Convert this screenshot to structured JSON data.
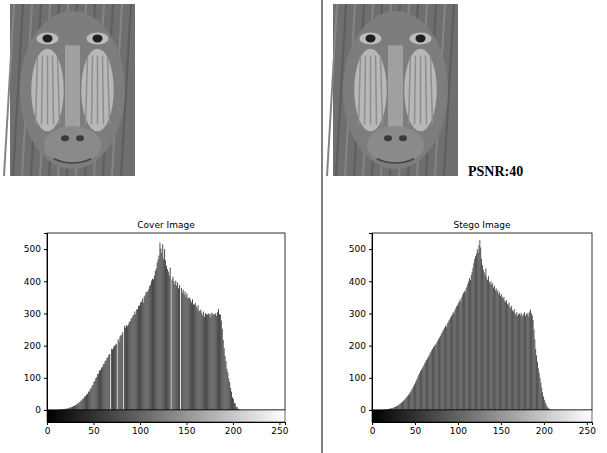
{
  "chart_data": [
    {
      "type": "histogram",
      "title": "Cover Image",
      "color": "#3f3f3f",
      "grid": false,
      "xlim": [
        0,
        256
      ],
      "xticks": [
        0,
        50,
        100,
        150,
        200,
        250
      ],
      "ylim": [
        0,
        550
      ],
      "yticks": [
        0,
        100,
        200,
        300,
        400,
        500
      ],
      "bins": [
        10,
        11,
        12,
        13,
        14,
        15,
        16,
        17,
        18,
        19,
        20,
        21,
        22,
        23,
        24,
        25,
        26,
        27,
        28,
        29,
        30,
        31,
        32,
        33,
        34,
        35,
        36,
        37,
        38,
        39,
        40,
        41,
        42,
        43,
        44,
        45,
        46,
        47,
        48,
        49,
        50,
        51,
        52,
        53,
        54,
        55,
        56,
        57,
        58,
        59,
        60,
        61,
        62,
        63,
        64,
        65,
        66,
        67,
        68,
        69,
        70,
        71,
        72,
        73,
        74,
        75,
        76,
        77,
        78,
        79,
        80,
        81,
        82,
        83,
        84,
        85,
        86,
        87,
        88,
        89,
        90,
        91,
        92,
        93,
        94,
        95,
        96,
        97,
        98,
        99,
        100,
        101,
        102,
        103,
        104,
        105,
        106,
        107,
        108,
        109,
        110,
        111,
        112,
        113,
        114,
        115,
        116,
        117,
        118,
        119,
        120,
        121,
        122,
        123,
        124,
        125,
        126,
        127,
        128,
        129,
        130,
        131,
        132,
        133,
        134,
        135,
        136,
        137,
        138,
        139,
        140,
        141,
        142,
        143,
        144,
        145,
        146,
        147,
        148,
        149,
        150,
        151,
        152,
        153,
        154,
        155,
        156,
        157,
        158,
        159,
        160,
        161,
        162,
        163,
        164,
        165,
        166,
        167,
        168,
        169,
        170,
        171,
        172,
        173,
        174,
        175,
        176,
        177,
        178,
        179,
        180,
        181,
        182,
        183,
        184,
        185,
        186,
        187,
        188,
        189,
        190,
        191,
        192,
        193,
        194,
        195,
        196,
        197,
        198,
        199,
        200,
        201,
        202,
        203,
        204,
        205,
        206,
        207,
        208,
        209,
        210
      ],
      "values": [
        0,
        0,
        0,
        1,
        1,
        2,
        1,
        2,
        3,
        4,
        3,
        5,
        6,
        5,
        7,
        9,
        8,
        10,
        13,
        12,
        16,
        16,
        20,
        20,
        24,
        25,
        29,
        30,
        35,
        36,
        42,
        43,
        48,
        50,
        57,
        58,
        66,
        67,
        76,
        78,
        88,
        90,
        99,
        102,
        112,
        113,
        123,
        124,
        132,
        133,
        142,
        144,
        152,
        154,
        162,
        164,
        172,
        174,
        0,
        190,
        188,
        194,
        200,
        202,
        206,
        0,
        220,
        212,
        228,
        232,
        234,
        242,
        0,
        262,
        256,
        264,
        260,
        266,
        274,
        276,
        284,
        286,
        294,
        296,
        306,
        298,
        312,
        314,
        324,
        324,
        334,
        336,
        346,
        334,
        352,
        356,
        366,
        368,
        368,
        376,
        386,
        390,
        402,
        408,
        406,
        418,
        432,
        440,
        458,
        468,
        480,
        520,
        502,
        488,
        515,
        470,
        500,
        465,
        448,
        438,
        430,
        418,
        442,
        0,
        406,
        414,
        400,
        390,
        402,
        386,
        396,
        378,
        388,
        0,
        380,
        364,
        374,
        358,
        368,
        352,
        362,
        348,
        348,
        350,
        342,
        334,
        344,
        328,
        328,
        332,
        322,
        314,
        326,
        308,
        308,
        312,
        302,
        294,
        306,
        290,
        300,
        298,
        296,
        300,
        298,
        288,
        300,
        302,
        294,
        298,
        298,
        300,
        292,
        304,
        314,
        298,
        296,
        278,
        252,
        218,
        192,
        168,
        152,
        128,
        117,
        98,
        87,
        68,
        57,
        40,
        34,
        22,
        20,
        10,
        9,
        4,
        3,
        1,
        0,
        0
      ]
    },
    {
      "type": "histogram",
      "title": "Stego Image",
      "color": "#3f3f3f",
      "grid": false,
      "annotations": [
        "PSNR:40"
      ],
      "xlim": [
        0,
        256
      ],
      "xticks": [
        0,
        50,
        100,
        150,
        200,
        250
      ],
      "ylim": [
        0,
        550
      ],
      "yticks": [
        0,
        100,
        200,
        300,
        400,
        500
      ],
      "bins": [
        10,
        11,
        12,
        13,
        14,
        15,
        16,
        17,
        18,
        19,
        20,
        21,
        22,
        23,
        24,
        25,
        26,
        27,
        28,
        29,
        30,
        31,
        32,
        33,
        34,
        35,
        36,
        37,
        38,
        39,
        40,
        41,
        42,
        43,
        44,
        45,
        46,
        47,
        48,
        49,
        50,
        51,
        52,
        53,
        54,
        55,
        56,
        57,
        58,
        59,
        60,
        61,
        62,
        63,
        64,
        65,
        66,
        67,
        68,
        69,
        70,
        71,
        72,
        73,
        74,
        75,
        76,
        77,
        78,
        79,
        80,
        81,
        82,
        83,
        84,
        85,
        86,
        87,
        88,
        89,
        90,
        91,
        92,
        93,
        94,
        95,
        96,
        97,
        98,
        99,
        100,
        101,
        102,
        103,
        104,
        105,
        106,
        107,
        108,
        109,
        110,
        111,
        112,
        113,
        114,
        115,
        116,
        117,
        118,
        119,
        120,
        121,
        122,
        123,
        124,
        125,
        126,
        127,
        128,
        129,
        130,
        131,
        132,
        133,
        134,
        135,
        136,
        137,
        138,
        139,
        140,
        141,
        142,
        143,
        144,
        145,
        146,
        147,
        148,
        149,
        150,
        151,
        152,
        153,
        154,
        155,
        156,
        157,
        158,
        159,
        160,
        161,
        162,
        163,
        164,
        165,
        166,
        167,
        168,
        169,
        170,
        171,
        172,
        173,
        174,
        175,
        176,
        177,
        178,
        179,
        180,
        181,
        182,
        183,
        184,
        185,
        186,
        187,
        188,
        189,
        190,
        191,
        192,
        193,
        194,
        195,
        196,
        197,
        198,
        199,
        200,
        201,
        202,
        203,
        204,
        205,
        206,
        207,
        208,
        209,
        210
      ],
      "values": [
        0,
        0,
        0,
        1,
        1,
        1,
        2,
        2,
        3,
        3,
        4,
        5,
        5,
        6,
        7,
        8,
        9,
        10,
        12,
        13,
        15,
        17,
        19,
        21,
        23,
        26,
        28,
        31,
        34,
        37,
        40,
        44,
        47,
        51,
        55,
        60,
        64,
        69,
        74,
        80,
        86,
        92,
        97,
        104,
        110,
        115,
        121,
        126,
        130,
        135,
        140,
        146,
        150,
        156,
        160,
        166,
        170,
        176,
        180,
        186,
        190,
        196,
        198,
        204,
        202,
        210,
        214,
        220,
        225,
        230,
        236,
        240,
        246,
        250,
        256,
        262,
        258,
        268,
        272,
        278,
        282,
        288,
        292,
        298,
        304,
        300,
        310,
        316,
        322,
        326,
        332,
        338,
        344,
        336,
        350,
        358,
        364,
        370,
        366,
        378,
        384,
        392,
        400,
        410,
        404,
        420,
        430,
        442,
        456,
        470,
        478,
        486,
        500,
        490,
        512,
        528,
        505,
        470,
        450,
        436,
        428,
        420,
        440,
        412,
        404,
        416,
        398,
        392,
        400,
        388,
        394,
        380,
        386,
        372,
        378,
        366,
        372,
        360,
        366,
        354,
        360,
        350,
        346,
        352,
        340,
        336,
        342,
        330,
        326,
        334,
        320,
        316,
        324,
        310,
        306,
        314,
        300,
        296,
        304,
        292,
        298,
        300,
        294,
        302,
        296,
        290,
        298,
        304,
        292,
        300,
        296,
        302,
        290,
        306,
        312,
        300,
        294,
        280,
        250,
        220,
        190,
        170,
        150,
        130,
        115,
        100,
        85,
        70,
        55,
        42,
        32,
        24,
        18,
        12,
        8,
        5,
        3,
        1,
        0,
        0
      ]
    }
  ]
}
